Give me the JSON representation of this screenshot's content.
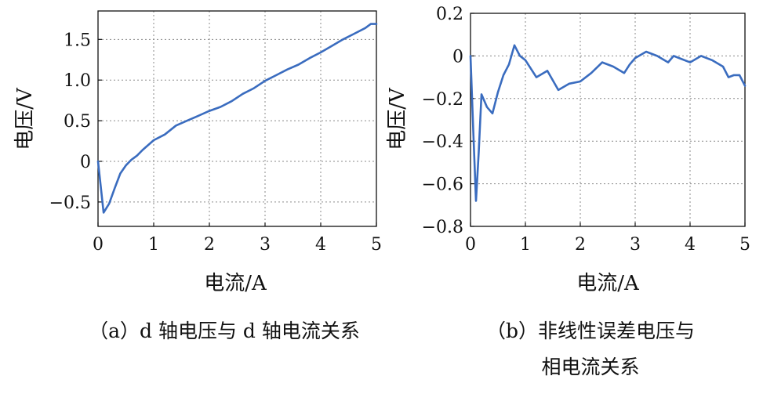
{
  "chart_data": [
    {
      "type": "line",
      "panel_label": "a",
      "caption": "（a）d 轴电压与 d 轴电流关系",
      "xlabel": "电流/A",
      "ylabel": "电压/V",
      "xlim": [
        0,
        5
      ],
      "ylim": [
        -0.8,
        1.85
      ],
      "xticks": [
        0,
        1,
        2,
        3,
        4,
        5
      ],
      "xtick_labels": [
        "0",
        "1",
        "2",
        "3",
        "4",
        "5"
      ],
      "yticks": [
        -0.5,
        0,
        0.5,
        1.0,
        1.5
      ],
      "ytick_labels": [
        "−0.5",
        "0",
        "0.5",
        "1.0",
        "1.5"
      ],
      "grid": true,
      "series": [
        {
          "color": "#3a6cbf",
          "x": [
            0,
            0.1,
            0.2,
            0.3,
            0.4,
            0.5,
            0.6,
            0.7,
            0.8,
            1.0,
            1.2,
            1.4,
            1.6,
            1.8,
            2.0,
            2.2,
            2.4,
            2.6,
            2.8,
            3.0,
            3.2,
            3.4,
            3.6,
            3.8,
            4.0,
            4.2,
            4.4,
            4.6,
            4.8,
            4.9,
            5.0
          ],
          "y": [
            0.0,
            -0.63,
            -0.52,
            -0.33,
            -0.15,
            -0.05,
            0.02,
            0.07,
            0.14,
            0.26,
            0.33,
            0.44,
            0.5,
            0.56,
            0.62,
            0.67,
            0.74,
            0.83,
            0.9,
            0.99,
            1.06,
            1.13,
            1.19,
            1.27,
            1.34,
            1.42,
            1.5,
            1.57,
            1.64,
            1.69,
            1.69
          ]
        }
      ]
    },
    {
      "type": "line",
      "panel_label": "b",
      "caption_lines": [
        "（b）非线性误差电压与",
        "相电流关系"
      ],
      "xlabel": "电流/A",
      "ylabel": "电压/V",
      "xlim": [
        0,
        5
      ],
      "ylim": [
        -0.8,
        0.2
      ],
      "xticks": [
        0,
        1,
        2,
        3,
        4,
        5
      ],
      "xtick_labels": [
        "0",
        "1",
        "2",
        "3",
        "4",
        "5"
      ],
      "yticks": [
        -0.8,
        -0.6,
        -0.4,
        -0.2,
        0,
        0.2
      ],
      "ytick_labels": [
        "−0.8",
        "−0.6",
        "−0.4",
        "−0.2",
        "0",
        "0.2"
      ],
      "grid": true,
      "series": [
        {
          "color": "#3a6cbf",
          "x": [
            0,
            0.05,
            0.1,
            0.15,
            0.2,
            0.3,
            0.4,
            0.5,
            0.6,
            0.7,
            0.8,
            0.9,
            1.0,
            1.2,
            1.4,
            1.6,
            1.8,
            2.0,
            2.2,
            2.4,
            2.6,
            2.8,
            2.9,
            3.0,
            3.2,
            3.4,
            3.6,
            3.7,
            3.8,
            4.0,
            4.2,
            4.4,
            4.6,
            4.7,
            4.8,
            4.9,
            5.0
          ],
          "y": [
            0.0,
            -0.35,
            -0.68,
            -0.45,
            -0.18,
            -0.24,
            -0.27,
            -0.17,
            -0.09,
            -0.04,
            0.05,
            0.0,
            -0.02,
            -0.1,
            -0.07,
            -0.16,
            -0.13,
            -0.12,
            -0.08,
            -0.03,
            -0.05,
            -0.08,
            -0.04,
            -0.01,
            0.02,
            0.0,
            -0.03,
            0.0,
            -0.01,
            -0.03,
            0.0,
            -0.02,
            -0.05,
            -0.1,
            -0.09,
            -0.09,
            -0.14
          ]
        }
      ]
    }
  ]
}
